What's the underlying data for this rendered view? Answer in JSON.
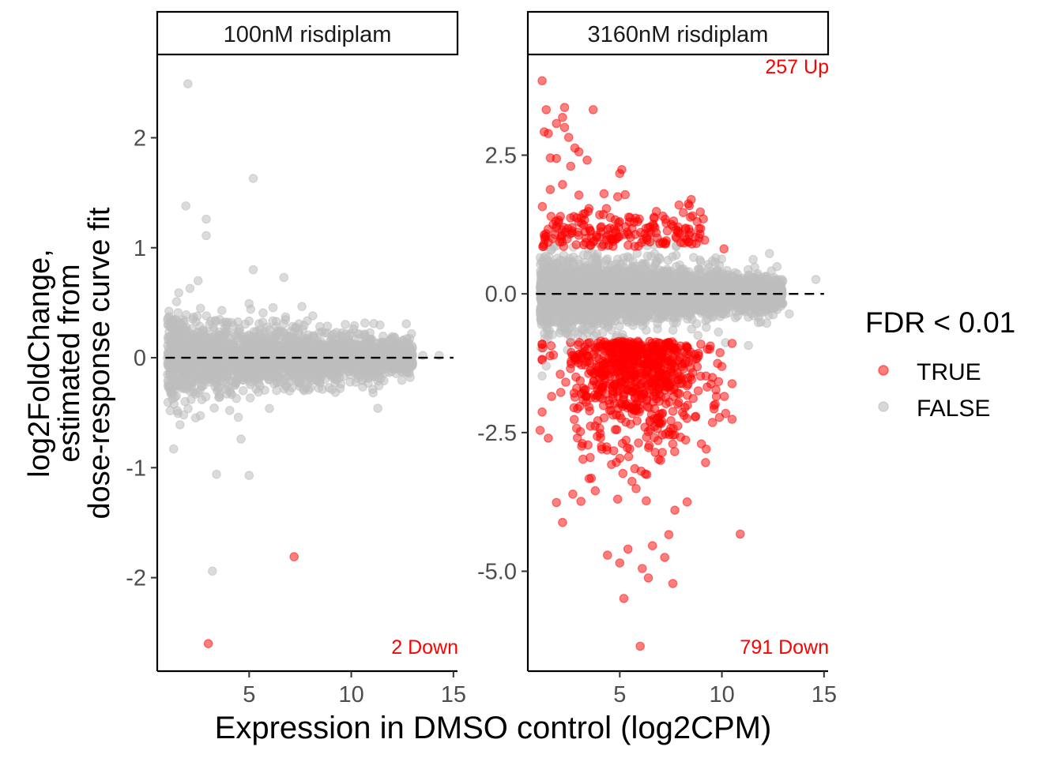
{
  "chart_data": {
    "type": "scatter",
    "xlabel": "Expression in DMSO control (log2CPM)",
    "ylabel_lines": [
      "log2FoldChange,",
      "estimated from",
      "dose-response curve fit"
    ],
    "legend": {
      "title": "FDR < 0.01",
      "entries": [
        {
          "label": "TRUE",
          "color": "#ff0000"
        },
        {
          "label": "FALSE",
          "color": "#bebebe"
        }
      ],
      "placement": "right"
    },
    "colors": {
      "sig": "#ff0000",
      "nonsig": "#bebebe",
      "annotation": "#ff0000"
    },
    "panels": [
      {
        "strip": "100nM risdiplam",
        "xlim": [
          0.5,
          15.2
        ],
        "ylim": [
          -2.85,
          2.75
        ],
        "xticks": [
          5,
          10,
          15
        ],
        "yticks": [
          -2,
          -1,
          0,
          1,
          2
        ],
        "ytick_labels": [
          "-2",
          "-1",
          "0",
          "1",
          "2"
        ],
        "hline": 0,
        "annotations": {
          "up": "",
          "down": "2 Down"
        },
        "sig_points": [
          [
            3.0,
            -2.6
          ],
          [
            7.2,
            -1.81
          ]
        ],
        "outlier_points": [
          [
            2.0,
            2.49
          ],
          [
            5.2,
            1.63
          ],
          [
            1.9,
            1.38
          ],
          [
            2.9,
            1.26
          ],
          [
            2.9,
            1.11
          ],
          [
            3.2,
            -1.94
          ],
          [
            3.4,
            -1.06
          ],
          [
            5.0,
            -1.07
          ],
          [
            1.3,
            -0.83
          ],
          [
            2.1,
            0.63
          ],
          [
            4.6,
            -0.74
          ],
          [
            6.7,
            0.73
          ],
          [
            5.2,
            0.8
          ],
          [
            2.5,
            0.7
          ],
          [
            11.3,
            -0.46
          ],
          [
            13.5,
            0.02
          ],
          [
            14.3,
            0.02
          ]
        ],
        "cloud": {
          "seed": 11,
          "n": 2400,
          "xmin": 1.0,
          "xmax": 13.0,
          "spread_low": 0.17,
          "spread_high": 0.08
        }
      },
      {
        "strip": "3160nM risdiplam",
        "xlim": [
          0.5,
          15.2
        ],
        "ylim": [
          -6.8,
          4.3
        ],
        "xticks": [
          5,
          10,
          15
        ],
        "yticks": [
          -5.0,
          -2.5,
          0.0,
          2.5
        ],
        "ytick_labels": [
          "-5.0",
          "-2.5",
          "0.0",
          "2.5"
        ],
        "hline": 0,
        "annotations": {
          "up": "257 Up",
          "down": "791 Down"
        },
        "sig_points": [
          [
            1.2,
            3.84
          ],
          [
            1.4,
            3.32
          ],
          [
            1.3,
            2.92
          ],
          [
            1.5,
            2.89
          ],
          [
            2.3,
            3.36
          ],
          [
            2.2,
            3.18
          ],
          [
            3.7,
            3.32
          ],
          [
            2.5,
            2.82
          ],
          [
            2.3,
            3.0
          ],
          [
            1.9,
            3.07
          ],
          [
            3.0,
            2.56
          ],
          [
            2.8,
            2.63
          ],
          [
            1.6,
            2.45
          ],
          [
            1.9,
            2.44
          ],
          [
            2.6,
            2.3
          ],
          [
            3.4,
            2.41
          ],
          [
            5.1,
            2.24
          ],
          [
            5.0,
            2.17
          ],
          [
            1.6,
            1.88
          ],
          [
            2.2,
            1.97
          ],
          [
            3.0,
            1.78
          ],
          [
            4.9,
            1.75
          ],
          [
            8.5,
            1.7
          ],
          [
            10.1,
            0.81
          ],
          [
            7.9,
            1.6
          ],
          [
            2.0,
            1.29
          ],
          [
            3.5,
            1.18
          ],
          [
            6.4,
            1.19
          ],
          [
            1.1,
            -2.46
          ],
          [
            1.5,
            -2.6
          ],
          [
            1.9,
            -3.76
          ],
          [
            2.2,
            -4.12
          ],
          [
            2.7,
            -3.61
          ],
          [
            3.1,
            -3.74
          ],
          [
            3.5,
            -3.33
          ],
          [
            3.8,
            -3.55
          ],
          [
            4.4,
            -4.71
          ],
          [
            5.0,
            -4.85
          ],
          [
            5.2,
            -5.49
          ],
          [
            4.9,
            -3.7
          ],
          [
            5.6,
            -3.38
          ],
          [
            5.8,
            -3.51
          ],
          [
            6.3,
            -3.73
          ],
          [
            6.1,
            -4.95
          ],
          [
            6.6,
            -4.54
          ],
          [
            6.4,
            -5.12
          ],
          [
            7.2,
            -4.75
          ],
          [
            7.6,
            -5.22
          ],
          [
            7.4,
            -4.34
          ],
          [
            7.7,
            -3.9
          ],
          [
            8.3,
            -3.75
          ],
          [
            9.2,
            -3.04
          ],
          [
            10.9,
            -4.33
          ],
          [
            6.0,
            -6.35
          ],
          [
            5.4,
            -4.6
          ],
          [
            7.0,
            -3.0
          ],
          [
            4.1,
            -2.75
          ],
          [
            3.2,
            -2.98
          ]
        ],
        "outlier_points": [
          [
            14.6,
            0.26
          ],
          [
            12.7,
            0.49
          ],
          [
            13.3,
            -0.36
          ],
          [
            11.3,
            -0.93
          ],
          [
            12.2,
            -0.53
          ],
          [
            1.2,
            -1.48
          ],
          [
            1.4,
            -1.3
          ],
          [
            2.6,
            -0.8
          ],
          [
            9.7,
            0.65
          ]
        ],
        "cloud": {
          "seed": 29,
          "n": 3500,
          "xmin": 1.1,
          "xmax": 13.0,
          "spread_low": 0.33,
          "spread_high": 0.12
        },
        "sig_cloud": {
          "seed": 47,
          "n_up": 180,
          "n_down": 720
        }
      }
    ]
  }
}
